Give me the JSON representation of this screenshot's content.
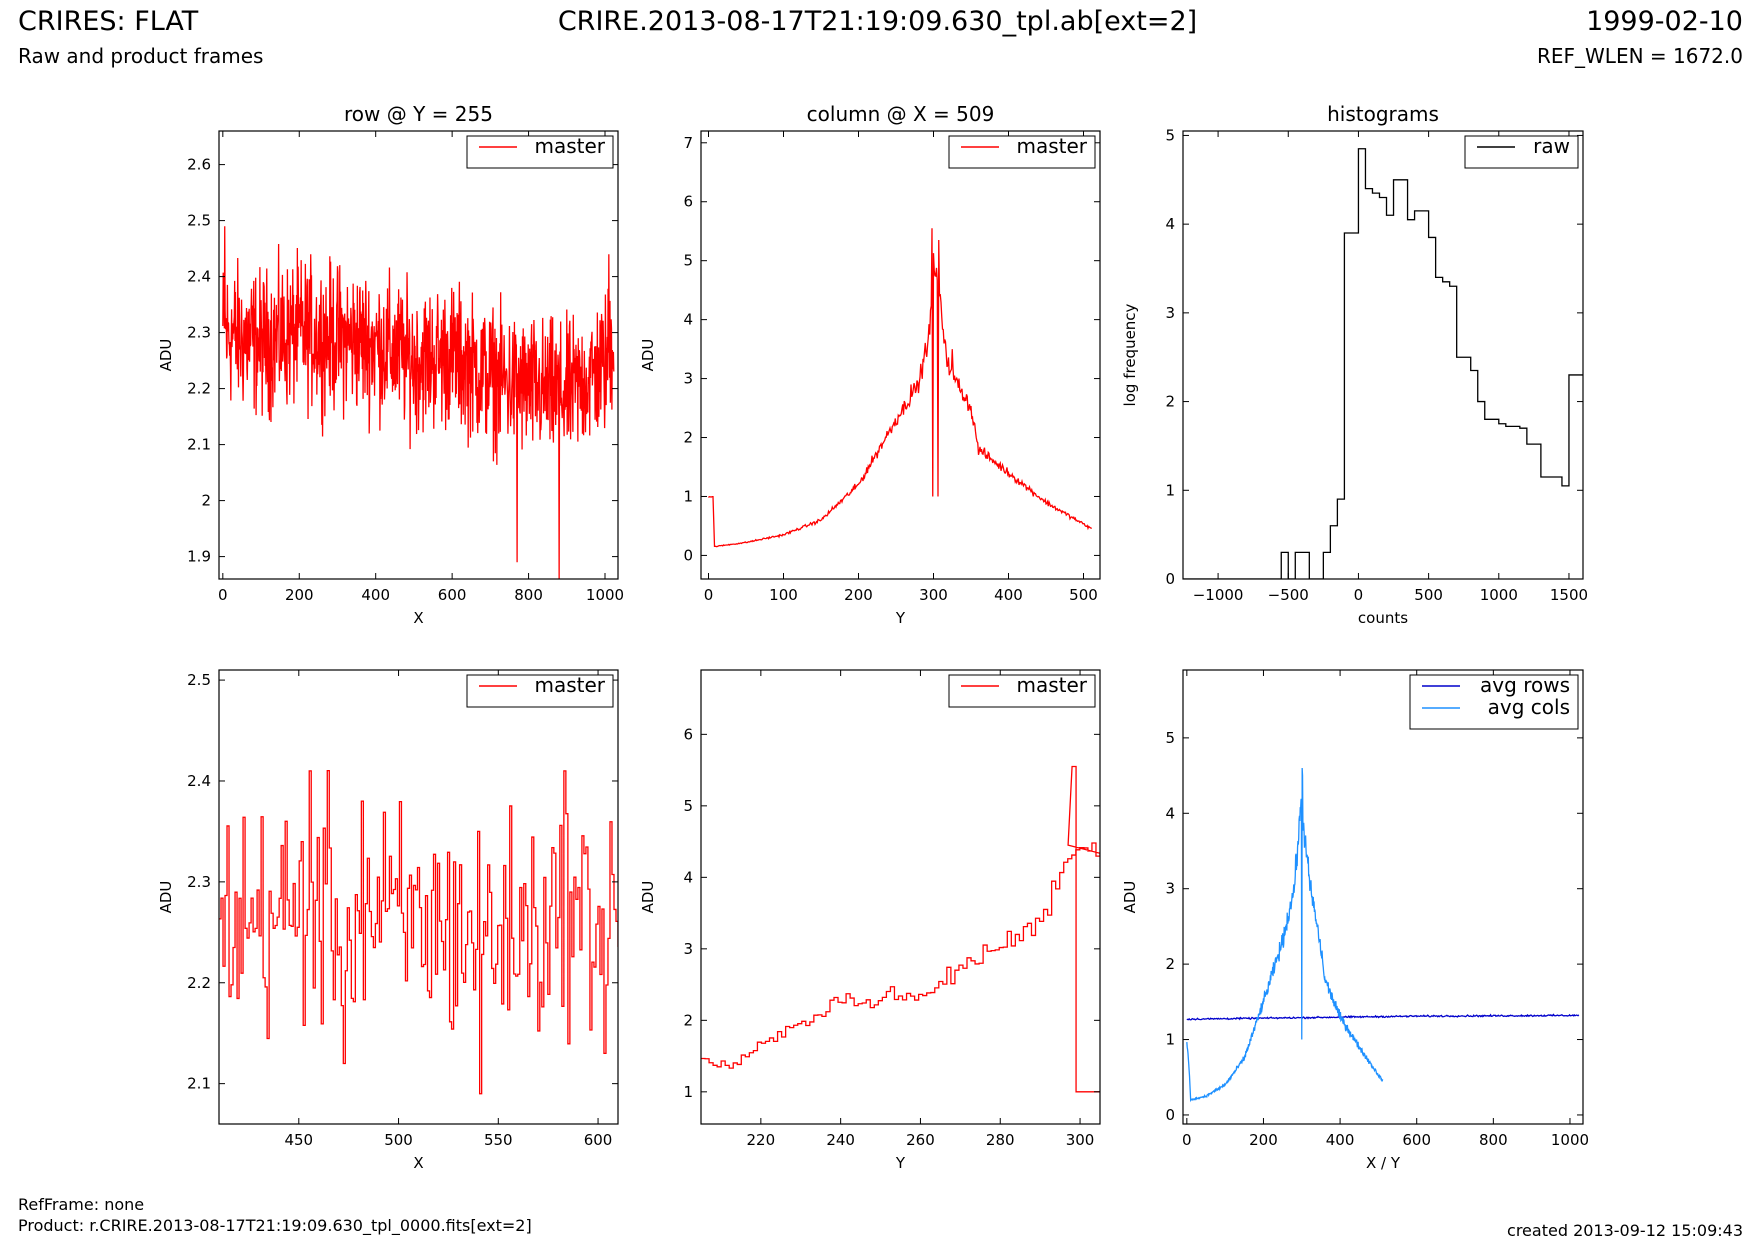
{
  "header": {
    "title": "CRIRES: FLAT",
    "subtitle": "Raw and product frames",
    "file": "CRIRE.2013-08-17T21:19:09.630_tpl.ab[ext=2]",
    "date": "1999-02-10",
    "ref_wlen": "REF_WLEN = 1672.0"
  },
  "footer": {
    "ref_frame": "RefFrame: none",
    "product": "Product: r.CRIRE.2013-08-17T21:19:09.630_tpl_0000.fits[ext=2]",
    "created": "created 2013-09-12 15:09:43"
  },
  "colors": {
    "master": "#ff0000",
    "raw": "#000000",
    "avg_rows": "#0000cc",
    "avg_cols": "#1e90ff"
  },
  "chart_data": [
    {
      "id": "row",
      "type": "line",
      "title": "row @ Y = 255",
      "xlabel": "X",
      "ylabel": "ADU",
      "xlim": [
        -10,
        1034
      ],
      "ylim": [
        1.86,
        2.66
      ],
      "xticks": [
        0,
        200,
        400,
        600,
        800,
        1000
      ],
      "yticks": [
        1.9,
        2.0,
        2.1,
        2.2,
        2.3,
        2.4,
        2.5,
        2.6
      ],
      "legend": "top-right",
      "series": [
        {
          "name": "master",
          "color": "#ff0000",
          "generator": "noise",
          "x_range": [
            0,
            1023
          ],
          "n": 1024,
          "x": [
            0,
            100,
            200,
            300,
            400,
            500,
            600,
            700,
            800,
            900,
            1000,
            1023
          ],
          "y": [
            2.3,
            2.28,
            2.3,
            2.29,
            2.28,
            2.25,
            2.26,
            2.22,
            2.2,
            2.19,
            2.24,
            2.3
          ],
          "amp": 0.055,
          "spikes": [
            [
              5,
              2.49
            ],
            [
              770,
              1.89
            ],
            [
              880,
              1.86
            ],
            [
              1010,
              2.44
            ]
          ]
        }
      ]
    },
    {
      "id": "col",
      "type": "line",
      "title": "column @ X = 509",
      "xlabel": "Y",
      "ylabel": "ADU",
      "xlim": [
        -10,
        522
      ],
      "ylim": [
        -0.4,
        7.2
      ],
      "xticks": [
        0,
        100,
        200,
        300,
        400,
        500
      ],
      "yticks": [
        0,
        1,
        2,
        3,
        4,
        5,
        6,
        7
      ],
      "legend": "top-right",
      "series": [
        {
          "name": "master",
          "color": "#ff0000",
          "generator": "noise",
          "x_range": [
            0,
            511
          ],
          "n": 512,
          "x": [
            0,
            6,
            8,
            50,
            100,
            150,
            200,
            250,
            280,
            295,
            300,
            305,
            320,
            350,
            360,
            400,
            450,
            511
          ],
          "y": [
            1.0,
            1.0,
            0.15,
            0.22,
            0.35,
            0.6,
            1.2,
            2.3,
            2.9,
            3.8,
            5.0,
            4.6,
            3.2,
            2.5,
            1.8,
            1.4,
            0.9,
            0.45
          ],
          "amp": 0.05,
          "spikes": [
            [
              298,
              5.55
            ],
            [
              299,
              1.0
            ],
            [
              306,
              1.0
            ],
            [
              307,
              5.35
            ],
            [
              270,
              2.9
            ],
            [
              325,
              3.5
            ]
          ]
        }
      ]
    },
    {
      "id": "hist",
      "type": "line",
      "title": "histograms",
      "xlabel": "counts",
      "ylabel": "log frequency",
      "xlim": [
        -1250,
        1600
      ],
      "ylim": [
        0,
        5.05
      ],
      "xticks": [
        -1000,
        -500,
        0,
        500,
        1000,
        1500
      ],
      "yticks": [
        0,
        1,
        2,
        3,
        4,
        5
      ],
      "xtick_labels": [
        "−1000",
        "−500",
        "0",
        "500",
        "1000",
        "1500"
      ],
      "legend": "top-right",
      "series": [
        {
          "name": "raw",
          "color": "#000000",
          "generator": "step",
          "x": [
            -1250,
            -550,
            -500,
            -450,
            -400,
            -350,
            -300,
            -250,
            -200,
            -150,
            -100,
            -50,
            0,
            50,
            100,
            150,
            200,
            250,
            300,
            350,
            400,
            450,
            500,
            550,
            600,
            650,
            700,
            750,
            800,
            850,
            900,
            950,
            1000,
            1050,
            1100,
            1150,
            1200,
            1250,
            1300,
            1350,
            1400,
            1450,
            1500,
            1550,
            1600
          ],
          "y": [
            0,
            0.3,
            0,
            0.3,
            0.3,
            0,
            0,
            0.3,
            0.6,
            0.9,
            3.9,
            3.9,
            4.85,
            4.4,
            4.35,
            4.3,
            4.1,
            4.5,
            4.5,
            4.05,
            4.15,
            4.15,
            3.85,
            3.4,
            3.35,
            3.3,
            2.5,
            2.5,
            2.35,
            2.0,
            1.8,
            1.8,
            1.75,
            1.72,
            1.72,
            1.7,
            1.52,
            1.52,
            1.15,
            1.15,
            1.15,
            1.05,
            2.3,
            2.3,
            2.3
          ]
        }
      ]
    },
    {
      "id": "row_zoom",
      "type": "line",
      "xlabel": "X",
      "ylabel": "ADU",
      "xlim": [
        410,
        610
      ],
      "ylim": [
        2.06,
        2.51
      ],
      "xticks": [
        450,
        500,
        550,
        600
      ],
      "yticks": [
        2.1,
        2.2,
        2.3,
        2.4,
        2.5
      ],
      "legend": "top-right",
      "series": [
        {
          "name": "master",
          "color": "#ff0000",
          "generator": "noise_step",
          "x_range": [
            410,
            610
          ],
          "n": 200,
          "x": [
            410,
            460,
            500,
            550,
            610
          ],
          "y": [
            2.26,
            2.27,
            2.26,
            2.25,
            2.27
          ],
          "amp": 0.05,
          "spikes": [
            [
              455,
              2.41
            ],
            [
              472,
              2.12
            ],
            [
              481,
              2.38
            ],
            [
              541,
              2.09
            ],
            [
              583,
              2.41
            ],
            [
              603,
              2.13
            ]
          ]
        }
      ]
    },
    {
      "id": "col_zoom",
      "type": "line",
      "xlabel": "Y",
      "ylabel": "ADU",
      "xlim": [
        205,
        305
      ],
      "ylim": [
        0.55,
        6.9
      ],
      "xticks": [
        220,
        240,
        260,
        280,
        300
      ],
      "yticks": [
        1,
        2,
        3,
        4,
        5,
        6
      ],
      "legend": "top-right",
      "series": [
        {
          "name": "master",
          "color": "#ff0000",
          "generator": "noise_step",
          "x_range": [
            205,
            305
          ],
          "n": 100,
          "x": [
            205,
            212,
            220,
            230,
            240,
            245,
            250,
            260,
            270,
            280,
            285,
            290,
            295,
            297
          ],
          "y": [
            1.45,
            1.35,
            1.65,
            1.95,
            2.35,
            2.2,
            2.35,
            2.3,
            2.75,
            3.05,
            3.2,
            3.4,
            4.1,
            4.4
          ],
          "amp": 0.05,
          "tail": [
            [
              297,
              4.45
            ],
            [
              298,
              5.55
            ],
            [
              299,
              5.55
            ],
            [
              299,
              1.0
            ],
            [
              305,
              1.0
            ]
          ]
        }
      ]
    },
    {
      "id": "avg",
      "type": "line",
      "xlabel": "X / Y",
      "ylabel": "ADU",
      "xlim": [
        -10,
        1034
      ],
      "ylim": [
        -0.12,
        5.9
      ],
      "xticks": [
        0,
        200,
        400,
        600,
        800,
        1000
      ],
      "yticks": [
        0,
        1,
        2,
        3,
        4,
        5
      ],
      "legend": "top-right",
      "series": [
        {
          "name": "avg rows",
          "color": "#0000cc",
          "generator": "noise",
          "x_range": [
            0,
            1023
          ],
          "n": 512,
          "x": [
            0,
            300,
            600,
            1023
          ],
          "y": [
            1.27,
            1.29,
            1.31,
            1.32
          ],
          "amp": 0.008
        },
        {
          "name": "avg cols",
          "color": "#1e90ff",
          "generator": "noise",
          "x_range": [
            0,
            511
          ],
          "n": 512,
          "x": [
            0,
            6,
            10,
            50,
            100,
            150,
            200,
            250,
            280,
            295,
            300,
            305,
            320,
            350,
            360,
            400,
            450,
            511
          ],
          "y": [
            1.0,
            0.6,
            0.2,
            0.25,
            0.4,
            0.75,
            1.5,
            2.3,
            3.0,
            3.9,
            4.3,
            3.8,
            3.1,
            2.2,
            1.8,
            1.3,
            0.9,
            0.45
          ],
          "amp": 0.05,
          "spikes": [
            [
              300,
              1.0
            ],
            [
              301,
              4.6
            ],
            [
              302,
              4.5
            ]
          ]
        }
      ]
    }
  ]
}
